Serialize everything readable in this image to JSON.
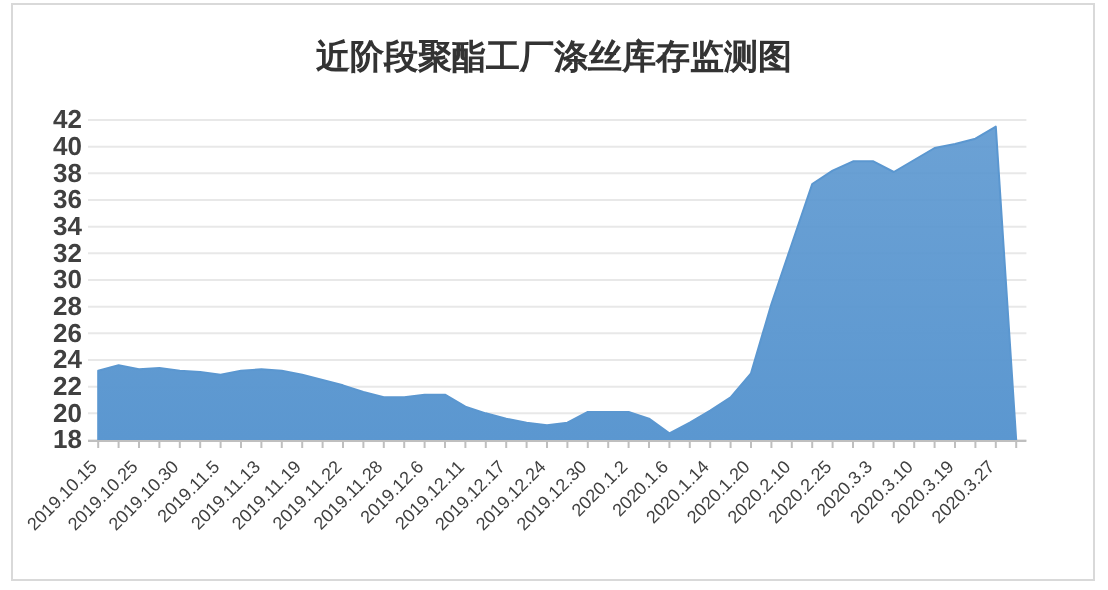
{
  "chart_data": {
    "type": "area",
    "title": "近阶段聚酯工厂涤丝库存监测图",
    "categories": [
      "2019.10.15",
      null,
      "2019.10.25",
      null,
      "2019.10.30",
      null,
      "2019.11.5",
      null,
      "2019.11.13",
      null,
      "2019.11.19",
      null,
      "2019.11.22",
      null,
      "2019.11.28",
      null,
      "2019.12.6",
      null,
      "2019.12.11",
      null,
      "2019.12.17",
      null,
      "2019.12.24",
      null,
      "2019.12.30",
      null,
      "2020.1.2",
      null,
      "2020.1.6",
      null,
      "2020.1.14",
      null,
      "2020.1.20",
      null,
      "2020.2.10",
      null,
      "2020.2.25",
      null,
      "2020.3.3",
      null,
      "2020.3.10",
      null,
      "2020.3.19",
      null,
      "2020.3.27",
      null
    ],
    "series": [
      {
        "color": "#5b97d0",
        "values": [
          23.2,
          23.6,
          23.3,
          23.4,
          23.2,
          23.1,
          22.9,
          23.2,
          23.3,
          23.2,
          22.9,
          22.5,
          22.1,
          21.6,
          21.2,
          21.2,
          21.4,
          21.4,
          20.5,
          20.0,
          19.6,
          19.3,
          19.1,
          19.3,
          20.1,
          20.1,
          20.1,
          19.6,
          18.5,
          19.3,
          20.2,
          21.2,
          23.0,
          28.2,
          32.7,
          37.2,
          38.2,
          38.9,
          38.9,
          38.1,
          39.0,
          39.9,
          40.2,
          40.6,
          41.5,
          18
        ]
      }
    ],
    "ylim": [
      18,
      42
    ],
    "yticks": [
      18,
      20,
      22,
      24,
      26,
      28,
      30,
      32,
      34,
      36,
      38,
      40,
      42
    ],
    "grid": "y"
  }
}
